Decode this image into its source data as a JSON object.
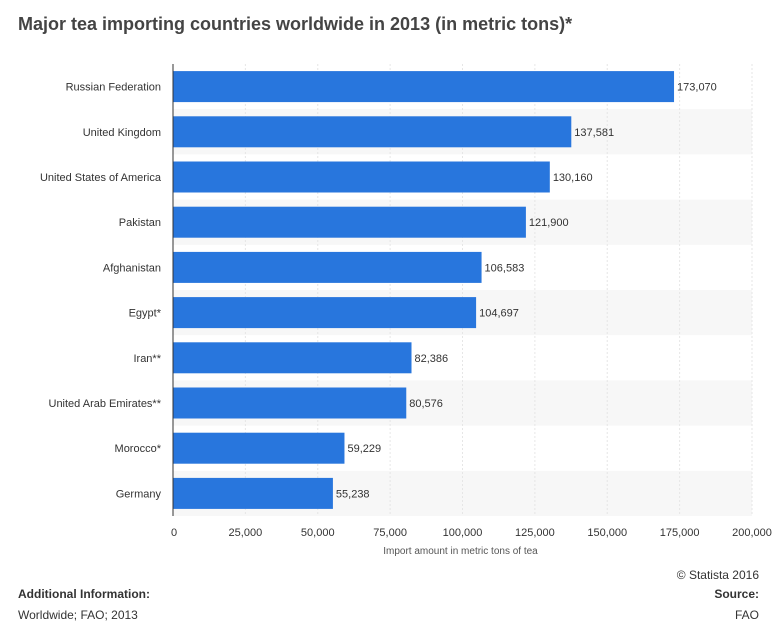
{
  "chart_data": {
    "type": "bar",
    "orientation": "horizontal",
    "title": "Major tea importing countries worldwide in 2013 (in metric tons)*",
    "categories": [
      "Russian Federation",
      "United Kingdom",
      "United States of America",
      "Pakistan",
      "Afghanistan",
      "Egypt*",
      "Iran**",
      "United Arab Emirates**",
      "Morocco*",
      "Germany"
    ],
    "values": [
      173070,
      137581,
      130160,
      121900,
      106583,
      104697,
      82386,
      80576,
      59229,
      55238
    ],
    "value_labels": [
      "173,070",
      "137,581",
      "130,160",
      "121,900",
      "106,583",
      "104,697",
      "82,386",
      "80,576",
      "59,229",
      "55,238"
    ],
    "xlabel": "Import amount in metric tons of tea",
    "ylabel": "",
    "xlim": [
      0,
      200000
    ],
    "ticks": [
      0,
      25000,
      50000,
      75000,
      100000,
      125000,
      150000,
      175000,
      200000
    ],
    "tick_labels": [
      "0",
      "25,000",
      "50,000",
      "75,000",
      "100,000",
      "125,000",
      "150,000",
      "175,000",
      "200,000"
    ],
    "bar_color": "#2876dd",
    "alt_row_color": "#f7f7f7",
    "grid": true
  },
  "footer": {
    "copyright": "© Statista 2016",
    "additional_info_heading": "Additional Information:",
    "additional_info_text": "Worldwide; FAO; 2013",
    "source_heading": "Source:",
    "source_text": "FAO"
  }
}
